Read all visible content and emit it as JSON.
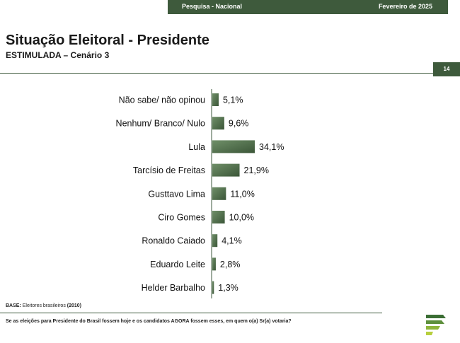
{
  "header": {
    "survey_label": "Pesquisa - Nacional",
    "date_label": "Fevereiro de 2025"
  },
  "page_title": "Situação Eleitoral - Presidente",
  "page_subtitle": "ESTIMULADA – Cenário 3",
  "page_number": "14",
  "footer": {
    "base_label": "BASE:",
    "base_text": "Eleitores brasileiros",
    "base_count": "(2010)",
    "question": "Se as eleições para Presidente do Brasil fossem hoje e os candidatos AGORA fossem esses, em quem o(a) Sr(a) votaria?"
  },
  "colors": {
    "accent": "#3e5a3c",
    "bar_dark": "#3b5638",
    "bar_light": "#6f8f68"
  },
  "logo_icon": "logo-icon",
  "chart_data": {
    "type": "bar",
    "orientation": "horizontal",
    "categories": [
      "Não sabe/ não opinou",
      "Nenhum/ Branco/ Nulo",
      "Lula",
      "Tarcísio de Freitas",
      "Gusttavo Lima",
      "Ciro Gomes",
      "Ronaldo Caiado",
      "Eduardo Leite",
      "Helder Barbalho"
    ],
    "values": [
      5.1,
      9.6,
      34.1,
      21.9,
      11.0,
      10.0,
      4.1,
      2.8,
      1.3
    ],
    "value_labels": [
      "5,1%",
      "9,6%",
      "34,1%",
      "21,9%",
      "11,0%",
      "10,0%",
      "4,1%",
      "2,8%",
      "1,3%"
    ],
    "title": "",
    "xlabel": "",
    "ylabel": "",
    "grid": false,
    "legend": "none"
  }
}
